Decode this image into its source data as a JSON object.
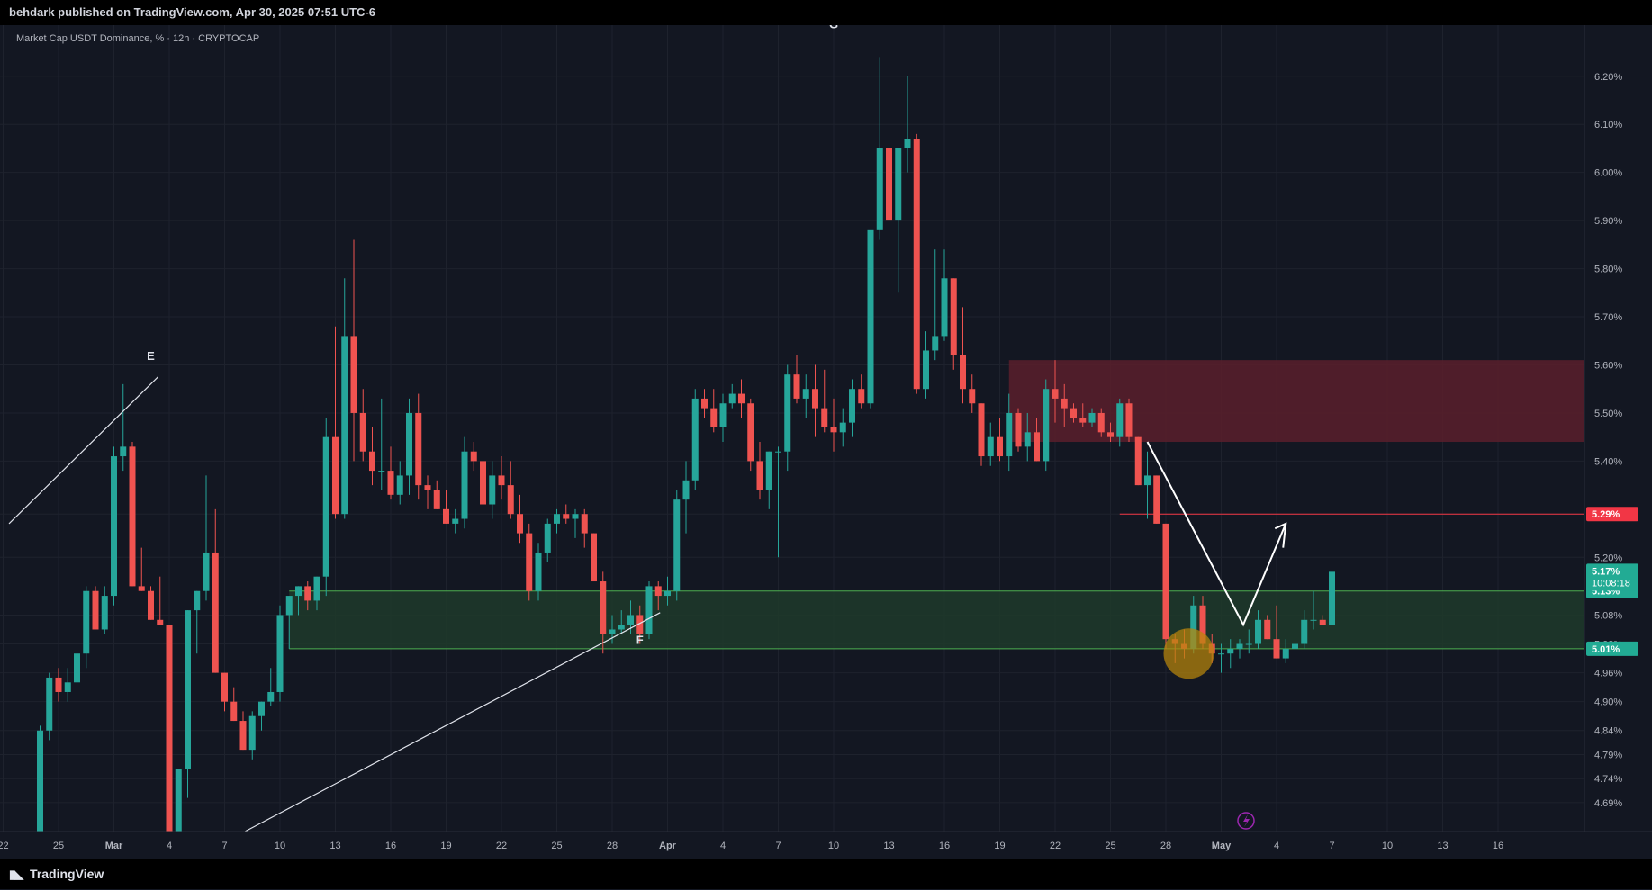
{
  "header": {
    "published": "behdark published on TradingView.com, Apr 30, 2025 07:51 UTC-6"
  },
  "footer": {
    "brand": "TradingView",
    "logo_icon": "tradingview-logo-icon"
  },
  "scale_button": {
    "label": "%"
  },
  "chart_data": {
    "type": "candlestick",
    "title": "Market Cap USDT Dominance, % · 12h · CRYPTOCAP",
    "interval": "12h",
    "ylim": [
      4.63,
      6.28
    ],
    "y_ticks": [
      "6.20%",
      "6.10%",
      "6.00%",
      "5.90%",
      "5.80%",
      "5.70%",
      "5.60%",
      "5.50%",
      "5.40%",
      "5.29%",
      "5.20%",
      "5.08%",
      "5.02%",
      "4.96%",
      "4.90%",
      "4.84%",
      "4.79%",
      "4.74%",
      "4.69%"
    ],
    "x_ticks": [
      {
        "label": "22",
        "i": -4
      },
      {
        "label": "25",
        "i": 2
      },
      {
        "label": "Mar",
        "i": 8
      },
      {
        "label": "4",
        "i": 14
      },
      {
        "label": "7",
        "i": 20
      },
      {
        "label": "10",
        "i": 26
      },
      {
        "label": "13",
        "i": 32
      },
      {
        "label": "16",
        "i": 38
      },
      {
        "label": "19",
        "i": 44
      },
      {
        "label": "22",
        "i": 50
      },
      {
        "label": "25",
        "i": 56
      },
      {
        "label": "28",
        "i": 62
      },
      {
        "label": "Apr",
        "i": 68
      },
      {
        "label": "4",
        "i": 74
      },
      {
        "label": "7",
        "i": 80
      },
      {
        "label": "10",
        "i": 86
      },
      {
        "label": "13",
        "i": 92
      },
      {
        "label": "16",
        "i": 98
      },
      {
        "label": "19",
        "i": 104
      },
      {
        "label": "22",
        "i": 110
      },
      {
        "label": "25",
        "i": 116
      },
      {
        "label": "28",
        "i": 122
      },
      {
        "label": "May",
        "i": 128
      },
      {
        "label": "4",
        "i": 134
      },
      {
        "label": "7",
        "i": 140
      },
      {
        "label": "10",
        "i": 146
      },
      {
        "label": "13",
        "i": 152
      },
      {
        "label": "16",
        "i": 158
      }
    ],
    "candles": [
      [
        4.6,
        4.85,
        4.55,
        4.84
      ],
      [
        4.84,
        4.96,
        4.82,
        4.95
      ],
      [
        4.95,
        4.97,
        4.9,
        4.92
      ],
      [
        4.92,
        4.97,
        4.9,
        4.94
      ],
      [
        4.94,
        5.01,
        4.92,
        5.0
      ],
      [
        5.0,
        5.14,
        4.97,
        5.13
      ],
      [
        5.13,
        5.14,
        5.05,
        5.05
      ],
      [
        5.05,
        5.14,
        5.04,
        5.12
      ],
      [
        5.12,
        5.43,
        5.1,
        5.41
      ],
      [
        5.41,
        5.56,
        5.38,
        5.43
      ],
      [
        5.43,
        5.44,
        5.14,
        5.14
      ],
      [
        5.14,
        5.22,
        5.13,
        5.13
      ],
      [
        5.13,
        5.14,
        5.07,
        5.07
      ],
      [
        5.07,
        5.16,
        5.06,
        5.06
      ],
      [
        5.06,
        5.06,
        4.55,
        4.6
      ],
      [
        4.6,
        4.76,
        4.55,
        4.76
      ],
      [
        4.76,
        5.09,
        4.7,
        5.09
      ],
      [
        5.09,
        5.13,
        5.0,
        5.13
      ],
      [
        5.13,
        5.37,
        5.11,
        5.21
      ],
      [
        5.21,
        5.3,
        4.96,
        4.96
      ],
      [
        4.96,
        4.96,
        4.88,
        4.9
      ],
      [
        4.9,
        4.93,
        4.86,
        4.86
      ],
      [
        4.86,
        4.88,
        4.8,
        4.8
      ],
      [
        4.8,
        4.88,
        4.78,
        4.87
      ],
      [
        4.87,
        4.9,
        4.84,
        4.9
      ],
      [
        4.9,
        4.97,
        4.89,
        4.92
      ],
      [
        4.92,
        5.1,
        4.9,
        5.08
      ],
      [
        5.08,
        5.11,
        5.01,
        5.12
      ],
      [
        5.12,
        5.14,
        5.08,
        5.14
      ],
      [
        5.14,
        5.15,
        5.09,
        5.11
      ],
      [
        5.11,
        5.16,
        5.09,
        5.16
      ],
      [
        5.16,
        5.49,
        5.12,
        5.45
      ],
      [
        5.45,
        5.68,
        5.28,
        5.29
      ],
      [
        5.29,
        5.78,
        5.28,
        5.66
      ],
      [
        5.66,
        5.86,
        5.4,
        5.5
      ],
      [
        5.5,
        5.55,
        5.4,
        5.42
      ],
      [
        5.42,
        5.47,
        5.35,
        5.38
      ],
      [
        5.38,
        5.53,
        5.34,
        5.38
      ],
      [
        5.38,
        5.43,
        5.32,
        5.33
      ],
      [
        5.33,
        5.4,
        5.31,
        5.37
      ],
      [
        5.37,
        5.53,
        5.33,
        5.5
      ],
      [
        5.5,
        5.54,
        5.32,
        5.35
      ],
      [
        5.35,
        5.37,
        5.3,
        5.34
      ],
      [
        5.34,
        5.36,
        5.3,
        5.3
      ],
      [
        5.3,
        5.34,
        5.27,
        5.27
      ],
      [
        5.27,
        5.3,
        5.25,
        5.28
      ],
      [
        5.28,
        5.45,
        5.26,
        5.42
      ],
      [
        5.42,
        5.44,
        5.38,
        5.4
      ],
      [
        5.4,
        5.41,
        5.3,
        5.31
      ],
      [
        5.31,
        5.4,
        5.28,
        5.37
      ],
      [
        5.37,
        5.41,
        5.32,
        5.35
      ],
      [
        5.35,
        5.4,
        5.28,
        5.29
      ],
      [
        5.29,
        5.33,
        5.23,
        5.25
      ],
      [
        5.25,
        5.27,
        5.11,
        5.13
      ],
      [
        5.13,
        5.23,
        5.11,
        5.21
      ],
      [
        5.21,
        5.28,
        5.19,
        5.27
      ],
      [
        5.27,
        5.3,
        5.25,
        5.29
      ],
      [
        5.29,
        5.31,
        5.27,
        5.28
      ],
      [
        5.28,
        5.3,
        5.24,
        5.29
      ],
      [
        5.29,
        5.3,
        5.22,
        5.25
      ],
      [
        5.25,
        5.25,
        5.15,
        5.15
      ],
      [
        5.15,
        5.17,
        5.0,
        5.04
      ],
      [
        5.04,
        5.08,
        5.02,
        5.05
      ],
      [
        5.05,
        5.09,
        5.04,
        5.06
      ],
      [
        5.06,
        5.11,
        5.04,
        5.08
      ],
      [
        5.08,
        5.1,
        5.02,
        5.04
      ],
      [
        5.04,
        5.15,
        5.03,
        5.14
      ],
      [
        5.14,
        5.15,
        5.09,
        5.12
      ],
      [
        5.12,
        5.16,
        5.1,
        5.13
      ],
      [
        5.13,
        5.34,
        5.11,
        5.32
      ],
      [
        5.32,
        5.4,
        5.25,
        5.36
      ],
      [
        5.36,
        5.55,
        5.34,
        5.53
      ],
      [
        5.53,
        5.55,
        5.49,
        5.51
      ],
      [
        5.51,
        5.55,
        5.46,
        5.47
      ],
      [
        5.47,
        5.54,
        5.44,
        5.52
      ],
      [
        5.52,
        5.56,
        5.51,
        5.54
      ],
      [
        5.54,
        5.57,
        5.49,
        5.52
      ],
      [
        5.52,
        5.53,
        5.38,
        5.4
      ],
      [
        5.4,
        5.44,
        5.32,
        5.34
      ],
      [
        5.34,
        5.42,
        5.3,
        5.42
      ],
      [
        5.42,
        5.43,
        5.2,
        5.42
      ],
      [
        5.42,
        5.6,
        5.38,
        5.58
      ],
      [
        5.58,
        5.62,
        5.52,
        5.53
      ],
      [
        5.53,
        5.58,
        5.49,
        5.55
      ],
      [
        5.55,
        5.6,
        5.45,
        5.51
      ],
      [
        5.51,
        5.59,
        5.46,
        5.47
      ],
      [
        5.47,
        5.53,
        5.42,
        5.46
      ],
      [
        5.46,
        5.51,
        5.43,
        5.48
      ],
      [
        5.48,
        5.57,
        5.45,
        5.55
      ],
      [
        5.55,
        5.58,
        5.51,
        5.52
      ],
      [
        5.52,
        5.87,
        5.51,
        5.88
      ],
      [
        5.88,
        6.24,
        5.86,
        6.05
      ],
      [
        6.05,
        6.06,
        5.8,
        5.9
      ],
      [
        5.9,
        6.04,
        5.75,
        6.05
      ],
      [
        6.05,
        6.2,
        6.0,
        6.07
      ],
      [
        6.07,
        6.08,
        5.54,
        5.55
      ],
      [
        5.55,
        5.67,
        5.53,
        5.63
      ],
      [
        5.63,
        5.84,
        5.61,
        5.66
      ],
      [
        5.66,
        5.84,
        5.65,
        5.78
      ],
      [
        5.78,
        5.78,
        5.59,
        5.62
      ],
      [
        5.62,
        5.72,
        5.52,
        5.55
      ],
      [
        5.55,
        5.58,
        5.5,
        5.52
      ],
      [
        5.52,
        5.52,
        5.39,
        5.41
      ],
      [
        5.41,
        5.48,
        5.39,
        5.45
      ],
      [
        5.45,
        5.49,
        5.4,
        5.41
      ],
      [
        5.41,
        5.54,
        5.38,
        5.5
      ],
      [
        5.5,
        5.51,
        5.42,
        5.43
      ],
      [
        5.43,
        5.5,
        5.4,
        5.46
      ],
      [
        5.46,
        5.49,
        5.4,
        5.4
      ],
      [
        5.4,
        5.57,
        5.38,
        5.55
      ],
      [
        5.55,
        5.61,
        5.48,
        5.53
      ],
      [
        5.53,
        5.56,
        5.47,
        5.51
      ],
      [
        5.51,
        5.52,
        5.48,
        5.49
      ],
      [
        5.49,
        5.52,
        5.47,
        5.48
      ],
      [
        5.48,
        5.51,
        5.47,
        5.5
      ],
      [
        5.5,
        5.51,
        5.45,
        5.46
      ],
      [
        5.46,
        5.48,
        5.44,
        5.45
      ],
      [
        5.45,
        5.53,
        5.43,
        5.52
      ],
      [
        5.52,
        5.53,
        5.44,
        5.45
      ],
      [
        5.45,
        5.45,
        5.35,
        5.35
      ],
      [
        5.35,
        5.42,
        5.28,
        5.37
      ],
      [
        5.37,
        5.37,
        5.27,
        5.27
      ],
      [
        5.27,
        5.27,
        5.01,
        5.03
      ],
      [
        5.03,
        5.04,
        4.98,
        5.02
      ],
      [
        5.02,
        5.05,
        4.99,
        5.01
      ],
      [
        5.01,
        5.12,
        5.0,
        5.1
      ],
      [
        5.1,
        5.12,
        5.01,
        5.02
      ],
      [
        5.02,
        5.04,
        4.98,
        5.0
      ],
      [
        5.0,
        5.02,
        4.96,
        5.0
      ],
      [
        5.0,
        5.03,
        4.97,
        5.01
      ],
      [
        5.01,
        5.03,
        4.99,
        5.02
      ],
      [
        5.02,
        5.05,
        5.0,
        5.02
      ],
      [
        5.02,
        5.09,
        5.01,
        5.07
      ],
      [
        5.07,
        5.08,
        5.03,
        5.03
      ],
      [
        5.03,
        5.1,
        4.99,
        4.99
      ],
      [
        4.99,
        5.03,
        4.98,
        5.01
      ],
      [
        5.01,
        5.05,
        5.0,
        5.02
      ],
      [
        5.02,
        5.09,
        5.01,
        5.07
      ],
      [
        5.07,
        5.13,
        5.05,
        5.07
      ],
      [
        5.07,
        5.08,
        5.06,
        5.06
      ],
      [
        5.06,
        5.17,
        5.05,
        5.17
      ]
    ],
    "zones": [
      {
        "name": "supply-zone",
        "from": 5.44,
        "to": 5.61,
        "start_i": 105,
        "color": "#5a1f2c"
      },
      {
        "name": "demand-zone",
        "from": 5.01,
        "to": 5.13,
        "start_i": 27,
        "color": "#1e3a2a"
      }
    ],
    "lines": [
      {
        "name": "resistance-line",
        "price": 5.29,
        "start_i": 117
      }
    ],
    "annotations": [
      {
        "label": "E",
        "i": 12,
        "price": 5.61
      },
      {
        "label": "F",
        "i": 65,
        "price": 5.02
      },
      {
        "label": "G",
        "i": 86,
        "price": 6.3
      }
    ],
    "price_labels": [
      {
        "text": "5.29%",
        "price": 5.29,
        "color": "#f23645"
      },
      {
        "text": "5.13%",
        "price": 5.13,
        "color": "#22ab94"
      },
      {
        "text": "5.01%",
        "price": 5.01,
        "color": "#22ab94"
      }
    ],
    "last_price": {
      "text": "5.17%",
      "countdown": "10:08:18",
      "price": 5.17,
      "color": "#22ab94"
    },
    "colors": {
      "up": "#26a69a",
      "down": "#ef5350",
      "background": "#131722",
      "grid": "#1e222d",
      "text": "#b2b5be"
    }
  }
}
